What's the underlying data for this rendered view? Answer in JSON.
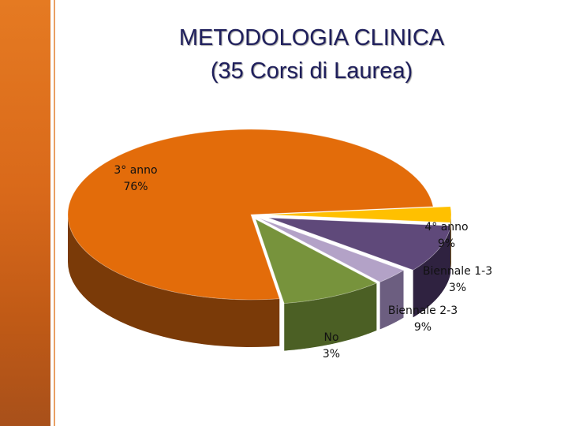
{
  "chart_data": {
    "type": "pie",
    "title_lines": [
      "METODOLOGIA CLINICA",
      "(35 Corsi di Laurea)"
    ],
    "slices": [
      {
        "label": "3° anno",
        "value_label": "76%",
        "value": 76,
        "color": "#e36c0a",
        "side": "#7a3a08"
      },
      {
        "label": "4° anno",
        "value_label": "9%",
        "value": 9,
        "color": "#77933c",
        "side": "#4b5f24"
      },
      {
        "label": "Biennale 1-3",
        "value_label": "3%",
        "value": 3,
        "color": "#b3a2c7",
        "side": "#6c5e80"
      },
      {
        "label": "Biennale 2-3",
        "value_label": "9%",
        "value": 9,
        "color": "#5f497a",
        "side": "#2f2240"
      },
      {
        "label": "No",
        "value_label": "3%",
        "value": 3,
        "color": "#ffc000",
        "side": "#8a6400"
      }
    ],
    "style": "3d-pie-exploded"
  }
}
